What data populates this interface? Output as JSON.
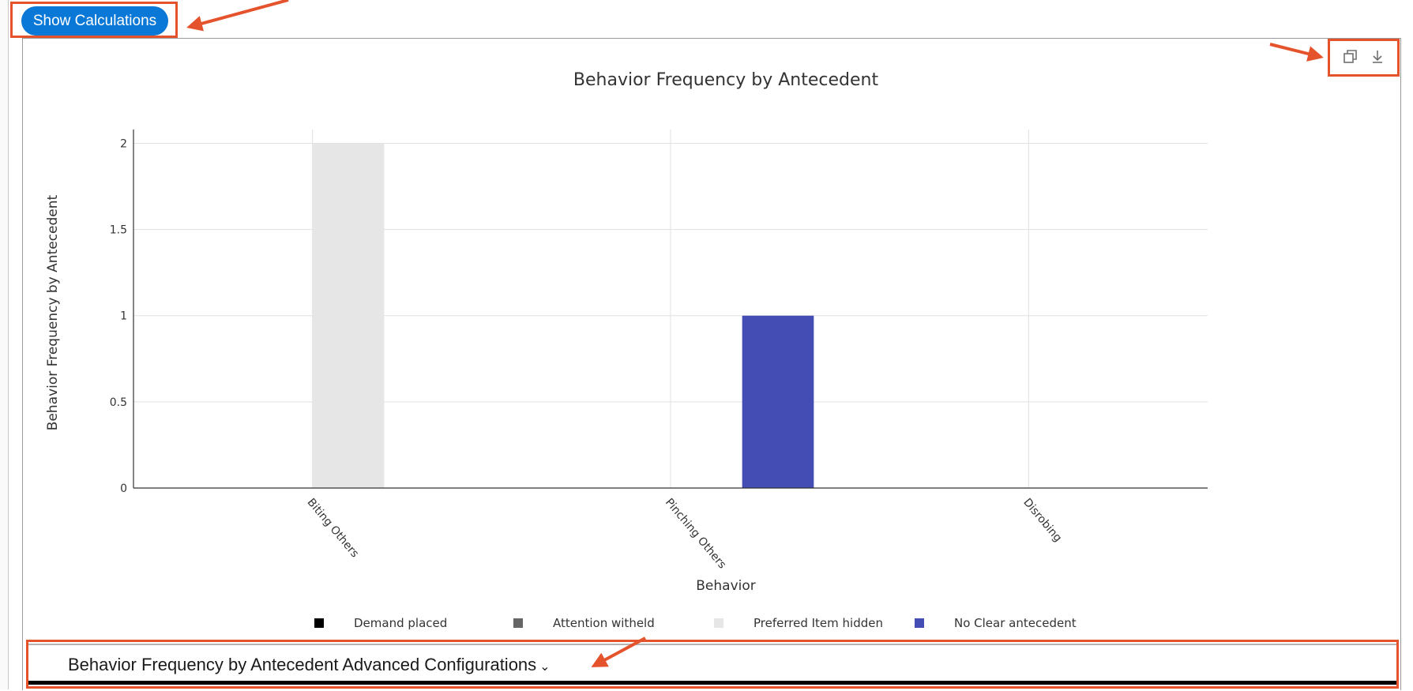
{
  "show_calculations_button": {
    "label": "Show Calculations"
  },
  "toolbar": {
    "copy_icon": "copy-icon",
    "download_icon": "download-icon"
  },
  "chart_data": {
    "type": "bar",
    "title": "Behavior Frequency by Antecedent",
    "xlabel": "Behavior",
    "ylabel": "Behavior Frequency by Antecedent",
    "categories": [
      "Biting Others",
      "Pinching Others",
      "Disrobing"
    ],
    "ylim": [
      0,
      2.08
    ],
    "yticks": [
      0,
      0.5,
      1,
      1.5,
      2
    ],
    "ytick_labels": [
      "0",
      "0.5",
      "1",
      "1.5",
      "2"
    ],
    "grid": true,
    "legend_position": "bottom",
    "series": [
      {
        "name": "Demand placed",
        "color": "#000000",
        "values": [
          0,
          0,
          0
        ]
      },
      {
        "name": "Attention witheld",
        "color": "#666666",
        "values": [
          0,
          0,
          0
        ]
      },
      {
        "name": "Preferred Item hidden",
        "color": "#e6e6e6",
        "values": [
          2,
          0,
          0
        ]
      },
      {
        "name": "No Clear antecedent",
        "color": "#434db3",
        "values": [
          0,
          1,
          0
        ]
      }
    ]
  },
  "advanced": {
    "heading": "Behavior Frequency by Antecedent Advanced Configurations",
    "chevron": "⌄"
  },
  "annotation_color": "#e5532d"
}
